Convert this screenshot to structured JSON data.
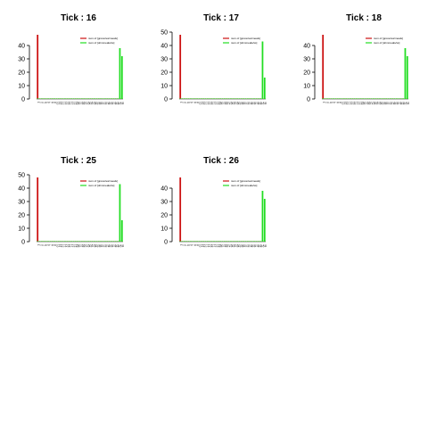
{
  "colors": {
    "red": "#cc1010",
    "green": "#22dd22",
    "axis": "#000000"
  },
  "legend_entries": [
    "num of [groceries/meals]",
    "num of [ohmmeals/ss]"
  ],
  "chart_data": [
    {
      "type": "bar",
      "title": "Tick : 16",
      "ylim": [
        0,
        50
      ],
      "yticks": [
        0,
        10,
        20,
        30,
        40
      ],
      "categories": [
        "1",
        "2",
        "3",
        "4",
        "5",
        "6",
        "7",
        "8",
        "9",
        "10",
        "11",
        "12",
        "13",
        "14",
        "15",
        "16",
        "17",
        "18",
        "19",
        "20",
        "21",
        "22",
        "23",
        "24",
        "25",
        "26",
        "27",
        "28",
        "29",
        "30",
        "31",
        "32",
        "33",
        "34",
        "35",
        "36",
        "37",
        "38",
        "39",
        "40",
        "41"
      ],
      "series": [
        {
          "color": "red",
          "values": [
            48,
            0,
            0,
            0,
            0,
            0,
            0,
            0,
            0,
            0,
            0,
            0,
            0,
            0,
            0,
            0,
            0,
            0,
            0,
            0,
            0,
            0,
            0,
            0,
            0,
            0,
            0,
            0,
            0,
            0,
            0,
            0,
            0,
            0,
            0,
            0,
            0,
            0,
            0,
            0,
            0
          ]
        },
        {
          "color": "green",
          "values": [
            0,
            0,
            0,
            0,
            0,
            0,
            0,
            0,
            0,
            0,
            0,
            0,
            0,
            0,
            0,
            0,
            0,
            0,
            0,
            0,
            0,
            0,
            0,
            0,
            0,
            0,
            0,
            0,
            0,
            0,
            0,
            0,
            0,
            0,
            0,
            0,
            0,
            0,
            0,
            38,
            32
          ]
        }
      ],
      "legend": "top-right"
    },
    {
      "type": "bar",
      "title": "Tick : 17",
      "ylim": [
        0,
        50
      ],
      "yticks": [
        0,
        10,
        20,
        30,
        40,
        50
      ],
      "categories": [
        "1",
        "2",
        "3",
        "4",
        "5",
        "6",
        "7",
        "8",
        "9",
        "10",
        "11",
        "12",
        "13",
        "14",
        "15",
        "16",
        "17",
        "18",
        "19",
        "20",
        "21",
        "22",
        "23",
        "24",
        "25",
        "26",
        "27",
        "28",
        "29",
        "30",
        "31",
        "32",
        "33",
        "34",
        "35",
        "36",
        "37",
        "38",
        "39",
        "40",
        "41"
      ],
      "series": [
        {
          "color": "red",
          "values": [
            48,
            0,
            0,
            0,
            0,
            0,
            0,
            0,
            0,
            0,
            0,
            0,
            0,
            0,
            0,
            0,
            0,
            0,
            0,
            0,
            0,
            0,
            0,
            0,
            0,
            0,
            0,
            0,
            0,
            0,
            0,
            0,
            0,
            0,
            0,
            0,
            0,
            0,
            0,
            0,
            0
          ]
        },
        {
          "color": "green",
          "values": [
            0,
            0,
            0,
            0,
            0,
            0,
            0,
            0,
            0,
            0,
            0,
            0,
            0,
            0,
            0,
            0,
            0,
            0,
            0,
            0,
            0,
            0,
            0,
            0,
            0,
            0,
            0,
            0,
            0,
            0,
            0,
            0,
            0,
            0,
            0,
            0,
            0,
            0,
            0,
            43,
            16
          ]
        }
      ],
      "legend": "top-right"
    },
    {
      "type": "bar",
      "title": "Tick : 18",
      "ylim": [
        0,
        50
      ],
      "yticks": [
        0,
        10,
        20,
        30,
        40
      ],
      "categories": [
        "1",
        "2",
        "3",
        "4",
        "5",
        "6",
        "7",
        "8",
        "9",
        "10",
        "11",
        "12",
        "13",
        "14",
        "15",
        "16",
        "17",
        "18",
        "19",
        "20",
        "21",
        "22",
        "23",
        "24",
        "25",
        "26",
        "27",
        "28",
        "29",
        "30",
        "31",
        "32",
        "33",
        "34",
        "35",
        "36",
        "37",
        "38",
        "39",
        "40",
        "41"
      ],
      "series": [
        {
          "color": "red",
          "values": [
            48,
            0,
            0,
            0,
            0,
            0,
            0,
            0,
            0,
            0,
            0,
            0,
            0,
            0,
            0,
            0,
            0,
            0,
            0,
            0,
            0,
            0,
            0,
            0,
            0,
            0,
            0,
            0,
            0,
            0,
            0,
            0,
            0,
            0,
            0,
            0,
            0,
            0,
            0,
            0,
            0
          ]
        },
        {
          "color": "green",
          "values": [
            0,
            0,
            0,
            0,
            0,
            0,
            0,
            0,
            0,
            0,
            0,
            0,
            0,
            0,
            0,
            0,
            0,
            0,
            0,
            0,
            0,
            0,
            0,
            0,
            0,
            0,
            0,
            0,
            0,
            0,
            0,
            0,
            0,
            0,
            0,
            0,
            0,
            0,
            0,
            38,
            32
          ]
        }
      ],
      "legend": "top-right"
    },
    {
      "type": "bar",
      "title": "Tick : 25",
      "ylim": [
        0,
        50
      ],
      "yticks": [
        0,
        10,
        20,
        30,
        40,
        50
      ],
      "categories": [
        "1",
        "2",
        "3",
        "4",
        "5",
        "6",
        "7",
        "8",
        "9",
        "10",
        "11",
        "12",
        "13",
        "14",
        "15",
        "16",
        "17",
        "18",
        "19",
        "20",
        "21",
        "22",
        "23",
        "24",
        "25",
        "26",
        "27",
        "28",
        "29",
        "30",
        "31",
        "32",
        "33",
        "34",
        "35",
        "36",
        "37",
        "38",
        "39",
        "40",
        "41"
      ],
      "series": [
        {
          "color": "red",
          "values": [
            48,
            0,
            0,
            0,
            0,
            0,
            0,
            0,
            0,
            0,
            0,
            0,
            0,
            0,
            0,
            0,
            0,
            0,
            0,
            0,
            0,
            0,
            0,
            0,
            0,
            0,
            0,
            0,
            0,
            0,
            0,
            0,
            0,
            0,
            0,
            0,
            0,
            0,
            0,
            0,
            0
          ]
        },
        {
          "color": "green",
          "values": [
            0,
            0,
            0,
            0,
            0,
            0,
            0,
            0,
            0,
            0,
            0,
            0,
            0,
            0,
            0,
            0,
            0,
            0,
            0,
            0,
            0,
            0,
            0,
            0,
            0,
            0,
            0,
            0,
            0,
            0,
            0,
            0,
            0,
            0,
            0,
            0,
            0,
            0,
            0,
            43,
            16
          ]
        }
      ],
      "legend": "top-right"
    },
    {
      "type": "bar",
      "title": "Tick : 26",
      "ylim": [
        0,
        50
      ],
      "yticks": [
        0,
        10,
        20,
        30,
        40
      ],
      "categories": [
        "1",
        "2",
        "3",
        "4",
        "5",
        "6",
        "7",
        "8",
        "9",
        "10",
        "11",
        "12",
        "13",
        "14",
        "15",
        "16",
        "17",
        "18",
        "19",
        "20",
        "21",
        "22",
        "23",
        "24",
        "25",
        "26",
        "27",
        "28",
        "29",
        "30",
        "31",
        "32",
        "33",
        "34",
        "35",
        "36",
        "37",
        "38",
        "39",
        "40",
        "41"
      ],
      "series": [
        {
          "color": "red",
          "values": [
            48,
            0,
            0,
            0,
            0,
            0,
            0,
            0,
            0,
            0,
            0,
            0,
            0,
            0,
            0,
            0,
            0,
            0,
            0,
            0,
            0,
            0,
            0,
            0,
            0,
            0,
            0,
            0,
            0,
            0,
            0,
            0,
            0,
            0,
            0,
            0,
            0,
            0,
            0,
            0,
            0
          ]
        },
        {
          "color": "green",
          "values": [
            0,
            0,
            0,
            0,
            0,
            0,
            0,
            0,
            0,
            0,
            0,
            0,
            0,
            0,
            0,
            0,
            0,
            0,
            0,
            0,
            0,
            0,
            0,
            0,
            0,
            0,
            0,
            0,
            0,
            0,
            0,
            0,
            0,
            0,
            0,
            0,
            0,
            0,
            0,
            38,
            32
          ]
        }
      ],
      "legend": "top-right"
    }
  ]
}
